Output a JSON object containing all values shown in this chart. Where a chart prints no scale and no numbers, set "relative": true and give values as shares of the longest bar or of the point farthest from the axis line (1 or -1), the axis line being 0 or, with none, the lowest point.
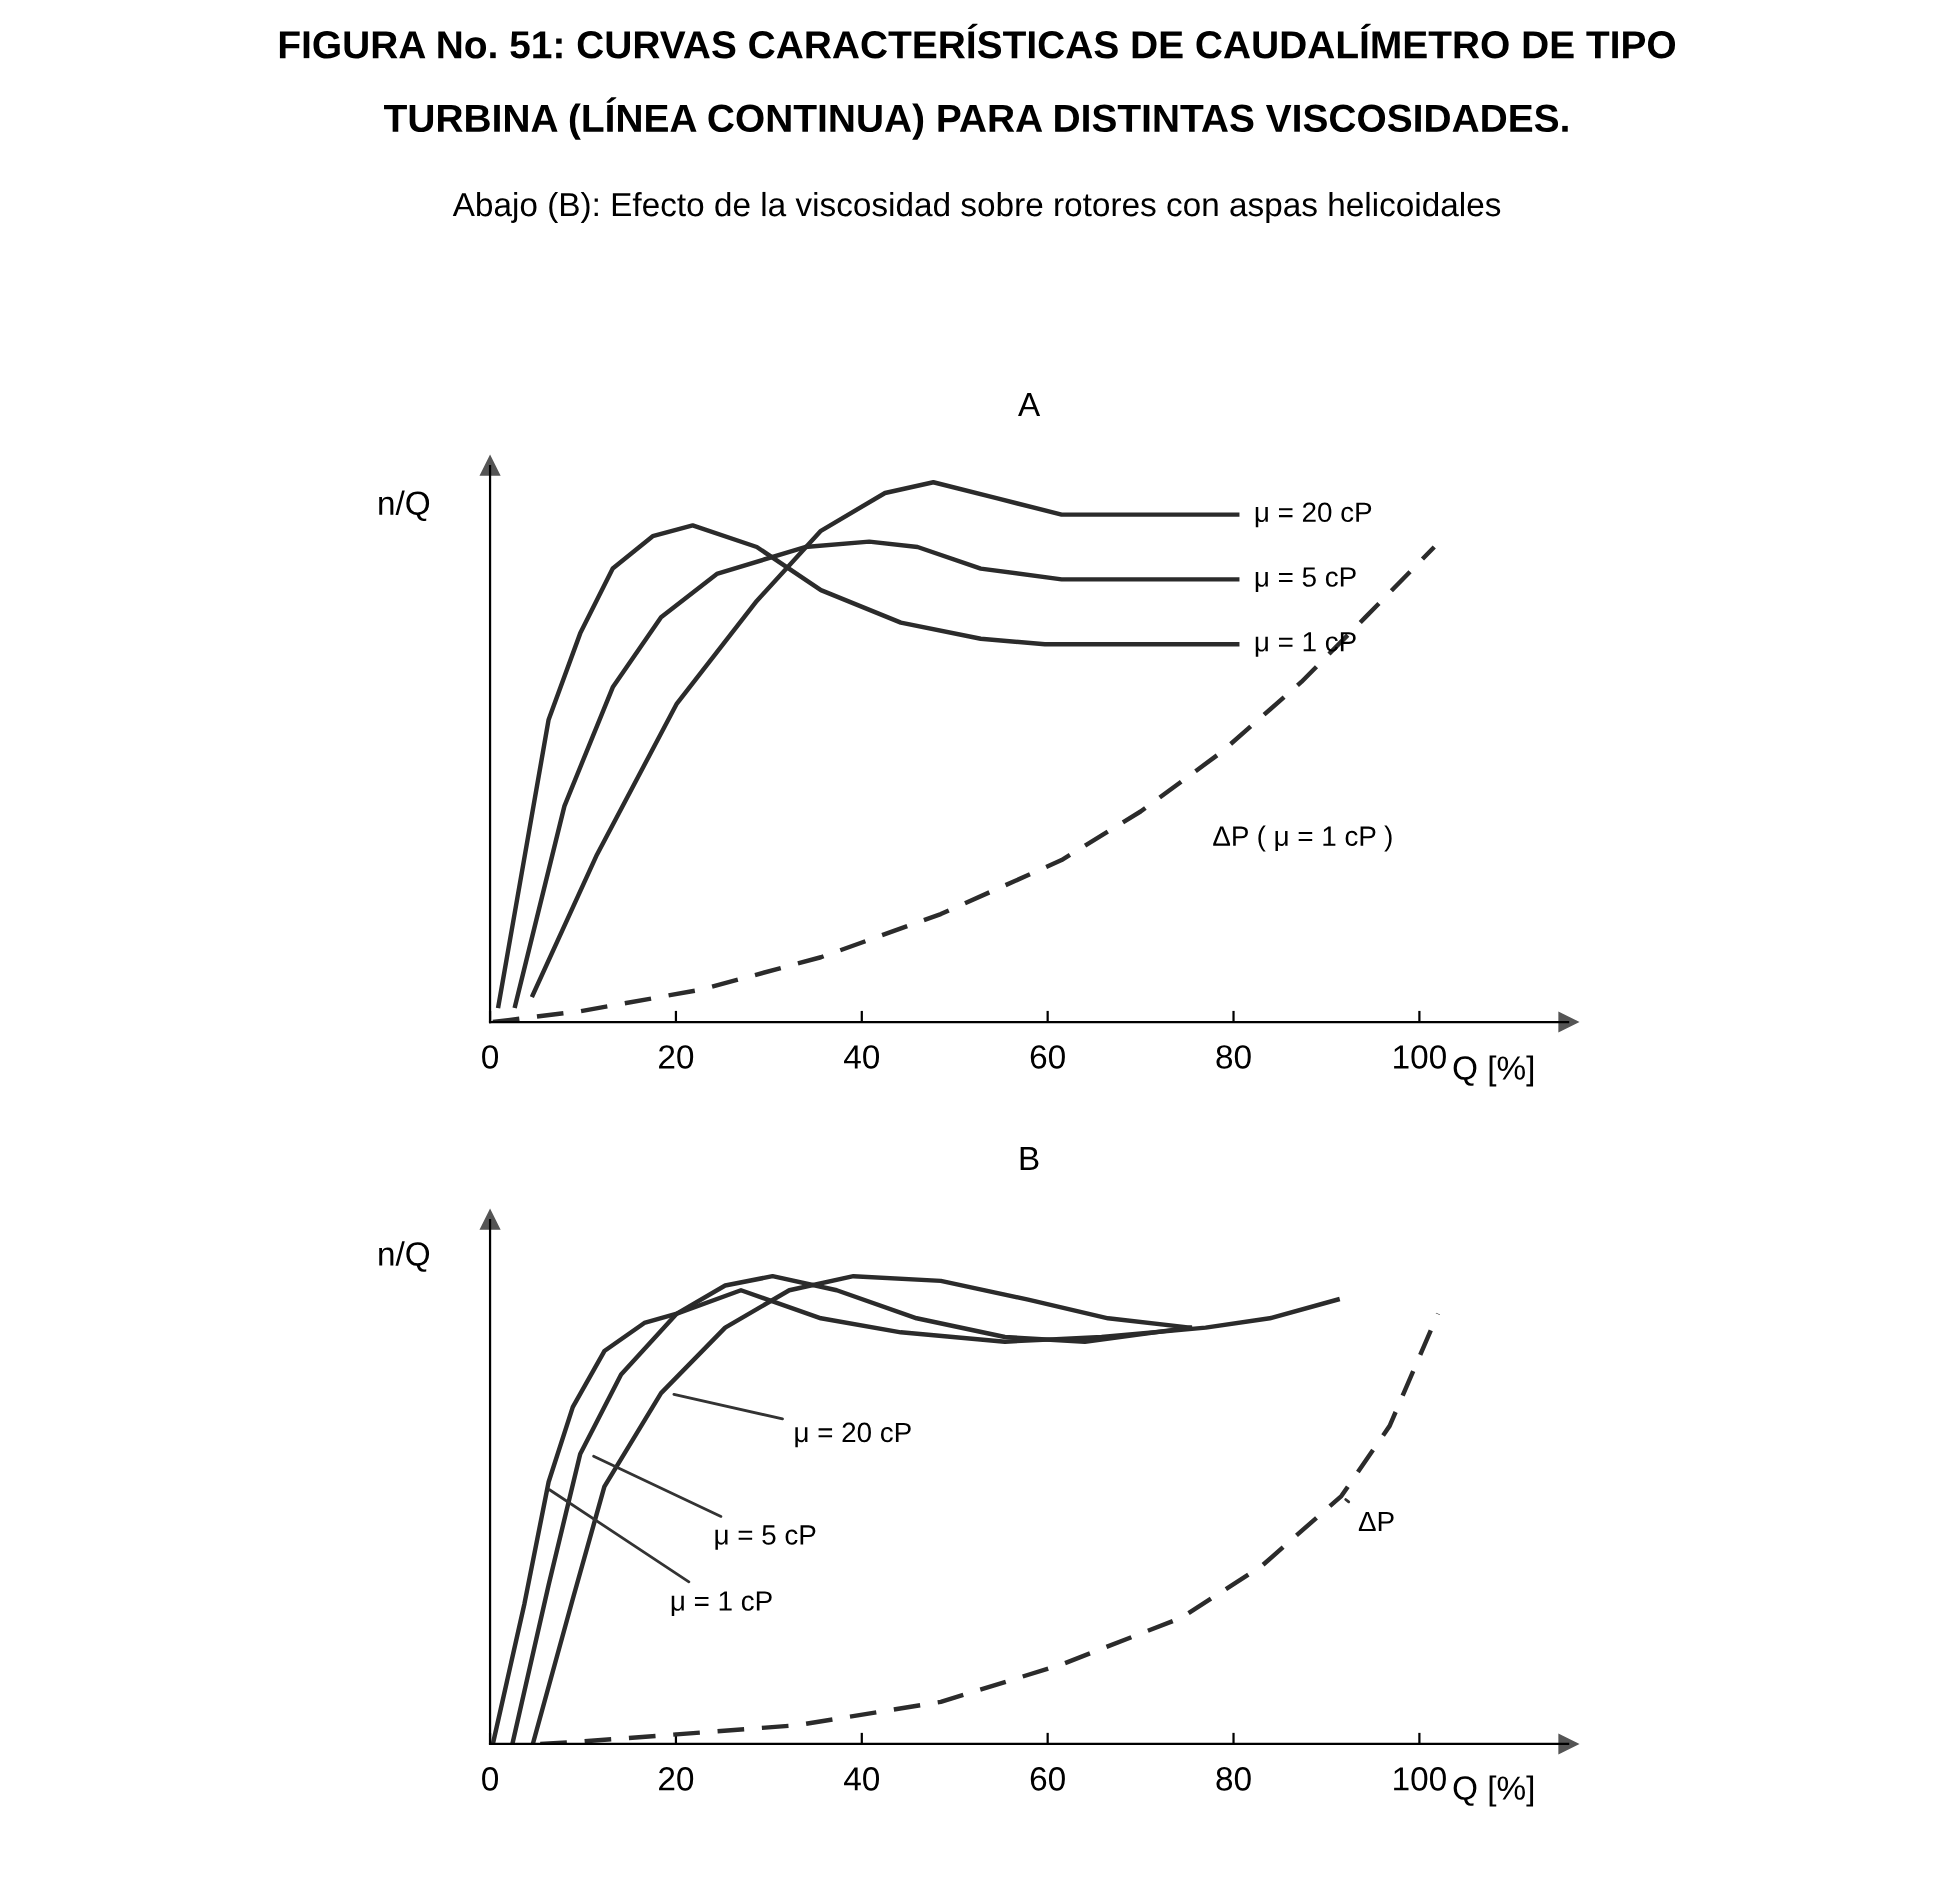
{
  "chart_data": [
    {
      "type": "line",
      "relative": true,
      "title": "A",
      "xlabel": "Q [%]",
      "ylabel": "n/Q",
      "xlim": [
        0,
        116
      ],
      "xticks": [
        0,
        20,
        40,
        60,
        80,
        100
      ],
      "grid": false,
      "legend": false,
      "marker": "none",
      "annotations": [
        "FIGURA No. 51: CURVAS CARACTERÍSTICAS DE CAUDALÍMETRO DE TIPO TURBINA (LÍNEA CONTINUA) PARA DISTINTAS VISCOSIDADES.",
        "Abajo (B): Efecto de la viscosidad sobre rotores con aspas helicoidales",
        {
          "text": "μ = 20 cP",
          "x": 80.4,
          "y": 0.94
        },
        {
          "text": "μ = 5 cP",
          "x": 80.4,
          "y": 0.82
        },
        {
          "text": "μ = 1 cP",
          "x": 80.4,
          "y": 0.7
        },
        "ΔP ( μ = 1 cP )"
      ],
      "series": [
        {
          "color": "#2b2b2b",
          "line_style": "solid",
          "x": [
            0.9,
            6.3,
            9.7,
            13.2,
            17.5,
            21.8,
            28.7,
            35.6,
            44.2,
            52.8,
            59.7,
            80.4
          ],
          "values": [
            0.03,
            0.56,
            0.72,
            0.84,
            0.9,
            0.92,
            0.88,
            0.8,
            0.74,
            0.71,
            0.7,
            0.7
          ]
        },
        {
          "color": "#2b2b2b",
          "line_style": "solid",
          "x": [
            2.7,
            8.0,
            13.2,
            18.4,
            24.4,
            33.9,
            40.8,
            46.0,
            52.8,
            61.5,
            80.4
          ],
          "values": [
            0.03,
            0.4,
            0.62,
            0.75,
            0.83,
            0.88,
            0.89,
            0.88,
            0.84,
            0.82,
            0.82
          ]
        },
        {
          "color": "#2b2b2b",
          "line_style": "solid",
          "x": [
            4.6,
            11.5,
            20.1,
            28.7,
            35.6,
            42.5,
            47.7,
            54.6,
            61.5,
            80.4
          ],
          "values": [
            0.05,
            0.31,
            0.59,
            0.78,
            0.91,
            0.98,
            1.0,
            0.97,
            0.94,
            0.94
          ]
        },
        {
          "color": "#2b2b2b",
          "line_style": "dashed",
          "x": [
            0.3,
            9.7,
            22.7,
            35.6,
            48.5,
            61.5,
            70.0,
            78.7,
            87.3,
            94.2,
            101.6
          ],
          "values": [
            0.0,
            0.02,
            0.06,
            0.12,
            0.2,
            0.3,
            0.39,
            0.5,
            0.63,
            0.75,
            0.88
          ]
        }
      ]
    },
    {
      "type": "line",
      "relative": true,
      "title": "B",
      "xlabel": "Q [%]",
      "ylabel": "n/Q",
      "xlim": [
        0,
        116
      ],
      "xticks": [
        0,
        20,
        40,
        60,
        80,
        100
      ],
      "grid": false,
      "legend": false,
      "marker": "none",
      "annotations": [
        {
          "text": "μ = 20 cP",
          "x": 19.2,
          "y": 0.75
        },
        {
          "text": "μ = 5 cP",
          "x": 10.6,
          "y": 0.62
        },
        {
          "text": "μ = 1 cP",
          "x": 5.9,
          "y": 0.55
        },
        {
          "text": "ΔP",
          "x": 91.6,
          "y": 0.53
        }
      ],
      "series": [
        {
          "color": "#2b2b2b",
          "line_style": "solid",
          "x": [
            0.3,
            3.7,
            6.3,
            8.9,
            12.3,
            16.6,
            20.1,
            27.0,
            35.6,
            44.2,
            55.4,
            65.8,
            77.0,
            83.9,
            91.2
          ],
          "values": [
            0.0,
            0.3,
            0.56,
            0.72,
            0.84,
            0.9,
            0.92,
            0.97,
            0.91,
            0.88,
            0.86,
            0.87,
            0.89,
            0.91,
            0.95
          ]
        },
        {
          "color": "#2b2b2b",
          "line_style": "solid",
          "x": [
            2.4,
            6.3,
            9.7,
            14.1,
            20.1,
            25.3,
            30.4,
            37.3,
            45.9,
            55.4,
            64.0,
            75.3
          ],
          "values": [
            0.0,
            0.34,
            0.62,
            0.79,
            0.92,
            0.98,
            1.0,
            0.97,
            0.91,
            0.87,
            0.86,
            0.89
          ]
        },
        {
          "color": "#2b2b2b",
          "line_style": "solid",
          "x": [
            4.6,
            8.9,
            12.3,
            18.4,
            25.3,
            32.2,
            39.1,
            48.5,
            57.9,
            66.5,
            75.3
          ],
          "values": [
            0.0,
            0.31,
            0.55,
            0.75,
            0.89,
            0.97,
            1.0,
            0.99,
            0.95,
            0.91,
            0.89
          ]
        },
        {
          "color": "#2b2b2b",
          "line_style": "dashed",
          "x": [
            5.4,
            9.7,
            33.0,
            48.5,
            61.5,
            74.4,
            83.0,
            91.6,
            96.8,
            102.0
          ],
          "values": [
            0.0,
            0.005,
            0.04,
            0.09,
            0.17,
            0.27,
            0.38,
            0.53,
            0.68,
            0.92
          ]
        }
      ]
    }
  ]
}
